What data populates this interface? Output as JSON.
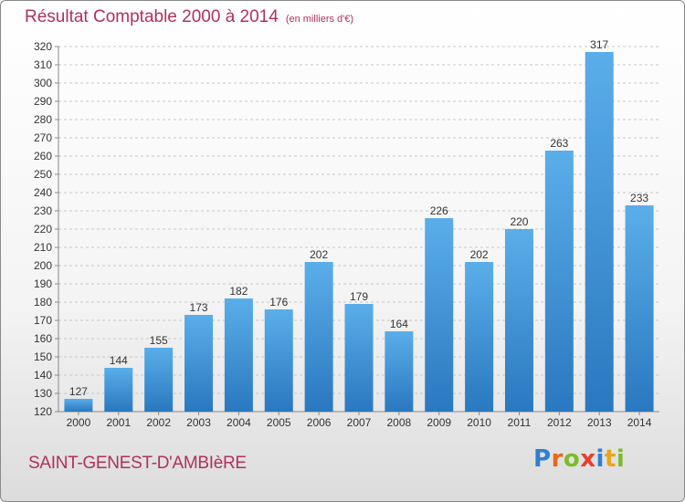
{
  "header": {
    "title": "Résultat Comptable 2000 à 2014",
    "unit": "(en milliers d'€)"
  },
  "footer": {
    "commune": "SAINT-GENEST-D'AMBIèRE",
    "logo_letters": [
      "P",
      "r",
      "o",
      "x",
      "i",
      "t",
      "i"
    ],
    "logo_colors": [
      "#2f7fd1",
      "#e8671d",
      "#7dbb2a",
      "#e83e2c",
      "#2f7fd1",
      "#e8a51d",
      "#7dbb2a"
    ]
  },
  "chart_data": {
    "type": "bar",
    "categories": [
      "2000",
      "2001",
      "2002",
      "2003",
      "2004",
      "2005",
      "2006",
      "2007",
      "2008",
      "2009",
      "2010",
      "2011",
      "2012",
      "2013",
      "2014"
    ],
    "values": [
      127,
      144,
      155,
      173,
      182,
      176,
      202,
      179,
      164,
      226,
      202,
      220,
      263,
      317,
      233
    ],
    "title": "Résultat Comptable 2000 à 2014",
    "ylim": [
      120,
      320
    ],
    "yticks": [
      120,
      130,
      140,
      150,
      160,
      170,
      180,
      190,
      200,
      210,
      220,
      230,
      240,
      250,
      260,
      270,
      280,
      290,
      300,
      310,
      320
    ],
    "grid": true,
    "data_labels": true,
    "bar_color": "#3d95dc"
  }
}
